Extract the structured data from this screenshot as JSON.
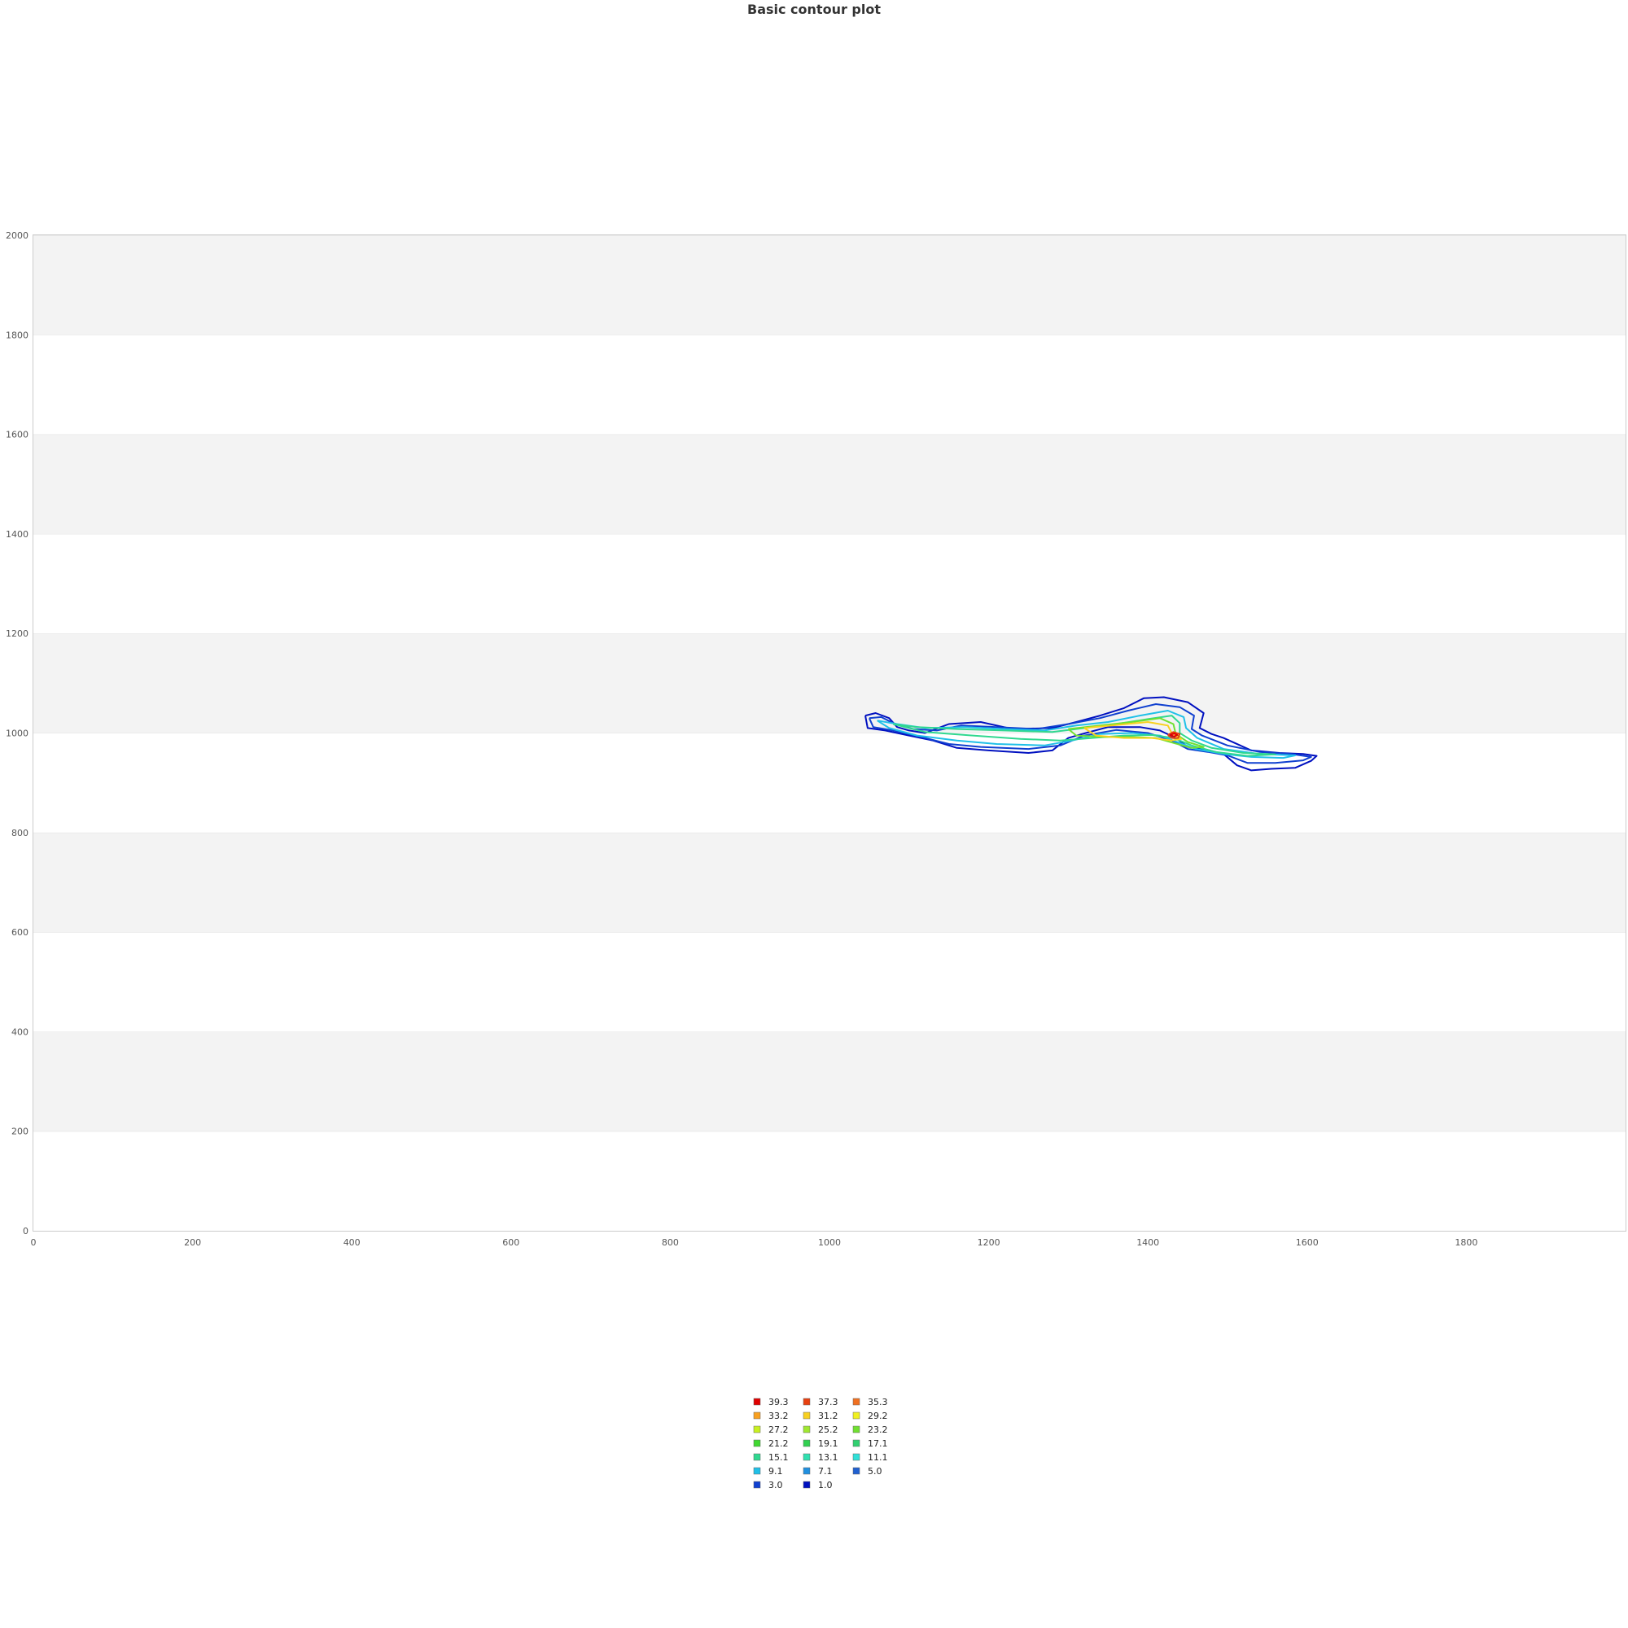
{
  "chart_data": {
    "type": "contour",
    "title": "Basic contour plot",
    "xlim": [
      0,
      2000
    ],
    "ylim": [
      0,
      2000
    ],
    "x_ticks": [
      0,
      200,
      400,
      600,
      800,
      1000,
      1200,
      1400,
      1600,
      1800
    ],
    "y_ticks": [
      0,
      200,
      400,
      600,
      800,
      1000,
      1200,
      1400,
      1600,
      1800,
      2000
    ],
    "grid": "alternating horizontal bands",
    "legend_placement": "bottom-center",
    "levels": [
      {
        "label": "39.3",
        "color": "#e00000"
      },
      {
        "label": "37.3",
        "color": "#e84010"
      },
      {
        "label": "35.3",
        "color": "#f07020"
      },
      {
        "label": "33.2",
        "color": "#f8a020"
      },
      {
        "label": "31.2",
        "color": "#f8d020"
      },
      {
        "label": "29.2",
        "color": "#f0f020"
      },
      {
        "label": "27.2",
        "color": "#c8f020"
      },
      {
        "label": "25.2",
        "color": "#a0e830"
      },
      {
        "label": "23.2",
        "color": "#70e030"
      },
      {
        "label": "21.2",
        "color": "#40d830"
      },
      {
        "label": "19.1",
        "color": "#30d050"
      },
      {
        "label": "17.1",
        "color": "#30d070"
      },
      {
        "label": "15.1",
        "color": "#30d890"
      },
      {
        "label": "13.1",
        "color": "#30e0b0"
      },
      {
        "label": "11.1",
        "color": "#30e0d8"
      },
      {
        "label": "9.1",
        "color": "#20c0e8"
      },
      {
        "label": "7.1",
        "color": "#2090e0"
      },
      {
        "label": "5.0",
        "color": "#2060d0"
      },
      {
        "label": "3.0",
        "color": "#1040d0"
      },
      {
        "label": "1.0",
        "color": "#0010c0"
      }
    ],
    "contours": [
      {
        "level": "1.0",
        "points": [
          [
            1045,
            1035
          ],
          [
            1058,
            1040
          ],
          [
            1075,
            1030
          ],
          [
            1085,
            1012
          ],
          [
            1100,
            1005
          ],
          [
            1120,
            1000
          ],
          [
            1150,
            1018
          ],
          [
            1190,
            1022
          ],
          [
            1230,
            1008
          ],
          [
            1280,
            1010
          ],
          [
            1310,
            1022
          ],
          [
            1340,
            1035
          ],
          [
            1370,
            1050
          ],
          [
            1395,
            1070
          ],
          [
            1420,
            1072
          ],
          [
            1450,
            1062
          ],
          [
            1470,
            1040
          ],
          [
            1465,
            1010
          ],
          [
            1480,
            998
          ],
          [
            1495,
            990
          ],
          [
            1530,
            965
          ],
          [
            1565,
            960
          ],
          [
            1595,
            958
          ],
          [
            1612,
            954
          ],
          [
            1605,
            944
          ],
          [
            1585,
            930
          ],
          [
            1555,
            928
          ],
          [
            1530,
            925
          ],
          [
            1512,
            935
          ],
          [
            1495,
            958
          ],
          [
            1470,
            968
          ],
          [
            1450,
            972
          ],
          [
            1435,
            990
          ],
          [
            1415,
            1005
          ],
          [
            1390,
            1012
          ],
          [
            1350,
            1012
          ],
          [
            1322,
            1000
          ],
          [
            1300,
            990
          ],
          [
            1280,
            965
          ],
          [
            1250,
            960
          ],
          [
            1200,
            965
          ],
          [
            1160,
            970
          ],
          [
            1130,
            985
          ],
          [
            1100,
            995
          ],
          [
            1070,
            1005
          ],
          [
            1048,
            1010
          ],
          [
            1045,
            1035
          ]
        ]
      },
      {
        "level": "3.0",
        "points": [
          [
            1050,
            1030
          ],
          [
            1065,
            1032
          ],
          [
            1080,
            1020
          ],
          [
            1105,
            1008
          ],
          [
            1135,
            1005
          ],
          [
            1165,
            1015
          ],
          [
            1210,
            1012
          ],
          [
            1260,
            1008
          ],
          [
            1300,
            1018
          ],
          [
            1340,
            1030
          ],
          [
            1375,
            1045
          ],
          [
            1410,
            1058
          ],
          [
            1440,
            1052
          ],
          [
            1458,
            1035
          ],
          [
            1455,
            1008
          ],
          [
            1468,
            995
          ],
          [
            1500,
            975
          ],
          [
            1540,
            962
          ],
          [
            1580,
            958
          ],
          [
            1605,
            952
          ],
          [
            1595,
            945
          ],
          [
            1560,
            940
          ],
          [
            1525,
            940
          ],
          [
            1500,
            955
          ],
          [
            1475,
            962
          ],
          [
            1450,
            968
          ],
          [
            1430,
            985
          ],
          [
            1400,
            1000
          ],
          [
            1360,
            1006
          ],
          [
            1320,
            995
          ],
          [
            1290,
            975
          ],
          [
            1250,
            968
          ],
          [
            1190,
            972
          ],
          [
            1150,
            978
          ],
          [
            1115,
            992
          ],
          [
            1080,
            1005
          ],
          [
            1055,
            1012
          ],
          [
            1050,
            1030
          ]
        ]
      },
      {
        "level": "9.1",
        "points": [
          [
            1060,
            1025
          ],
          [
            1085,
            1018
          ],
          [
            1120,
            1010
          ],
          [
            1170,
            1012
          ],
          [
            1220,
            1008
          ],
          [
            1270,
            1005
          ],
          [
            1310,
            1015
          ],
          [
            1350,
            1022
          ],
          [
            1390,
            1035
          ],
          [
            1425,
            1045
          ],
          [
            1445,
            1032
          ],
          [
            1448,
            1010
          ],
          [
            1462,
            990
          ],
          [
            1495,
            968
          ],
          [
            1540,
            958
          ],
          [
            1585,
            955
          ],
          [
            1570,
            950
          ],
          [
            1530,
            952
          ],
          [
            1495,
            958
          ],
          [
            1460,
            968
          ],
          [
            1440,
            980
          ],
          [
            1415,
            995
          ],
          [
            1380,
            1000
          ],
          [
            1340,
            998
          ],
          [
            1305,
            985
          ],
          [
            1270,
            975
          ],
          [
            1210,
            978
          ],
          [
            1160,
            985
          ],
          [
            1110,
            995
          ],
          [
            1075,
            1010
          ],
          [
            1060,
            1025
          ]
        ]
      },
      {
        "level": "15.1",
        "points": [
          [
            1080,
            1018
          ],
          [
            1110,
            1012
          ],
          [
            1160,
            1008
          ],
          [
            1220,
            1005
          ],
          [
            1280,
            1002
          ],
          [
            1320,
            1010
          ],
          [
            1360,
            1018
          ],
          [
            1400,
            1028
          ],
          [
            1430,
            1035
          ],
          [
            1440,
            1020
          ],
          [
            1440,
            1000
          ],
          [
            1455,
            985
          ],
          [
            1480,
            970
          ],
          [
            1520,
            960
          ],
          [
            1560,
            957
          ],
          [
            1525,
            954
          ],
          [
            1485,
            962
          ],
          [
            1455,
            975
          ],
          [
            1432,
            990
          ],
          [
            1405,
            996
          ],
          [
            1370,
            995
          ],
          [
            1330,
            990
          ],
          [
            1290,
            985
          ],
          [
            1240,
            988
          ],
          [
            1180,
            995
          ],
          [
            1120,
            1002
          ],
          [
            1080,
            1018
          ]
        ]
      },
      {
        "level": "23.2",
        "points": [
          [
            1300,
            1008
          ],
          [
            1340,
            1015
          ],
          [
            1380,
            1022
          ],
          [
            1415,
            1030
          ],
          [
            1432,
            1018
          ],
          [
            1435,
            998
          ],
          [
            1450,
            982
          ],
          [
            1470,
            972
          ],
          [
            1455,
            970
          ],
          [
            1432,
            980
          ],
          [
            1410,
            990
          ],
          [
            1380,
            992
          ],
          [
            1345,
            992
          ],
          [
            1310,
            995
          ],
          [
            1300,
            1008
          ]
        ]
      },
      {
        "level": "31.2",
        "points": [
          [
            1320,
            1010
          ],
          [
            1360,
            1016
          ],
          [
            1400,
            1022
          ],
          [
            1425,
            1015
          ],
          [
            1430,
            1000
          ],
          [
            1442,
            988
          ],
          [
            1430,
            985
          ],
          [
            1405,
            990
          ],
          [
            1370,
            990
          ],
          [
            1335,
            995
          ],
          [
            1320,
            1010
          ]
        ]
      },
      {
        "level": "37.3",
        "points": [
          [
            1425,
            996
          ],
          [
            1432,
            1002
          ],
          [
            1440,
            998
          ],
          [
            1438,
            990
          ],
          [
            1430,
            990
          ],
          [
            1425,
            996
          ]
        ]
      },
      {
        "level": "39.3",
        "points": [
          [
            1428,
            996
          ],
          [
            1433,
            999
          ],
          [
            1437,
            996
          ],
          [
            1433,
            993
          ],
          [
            1428,
            996
          ]
        ]
      }
    ]
  }
}
